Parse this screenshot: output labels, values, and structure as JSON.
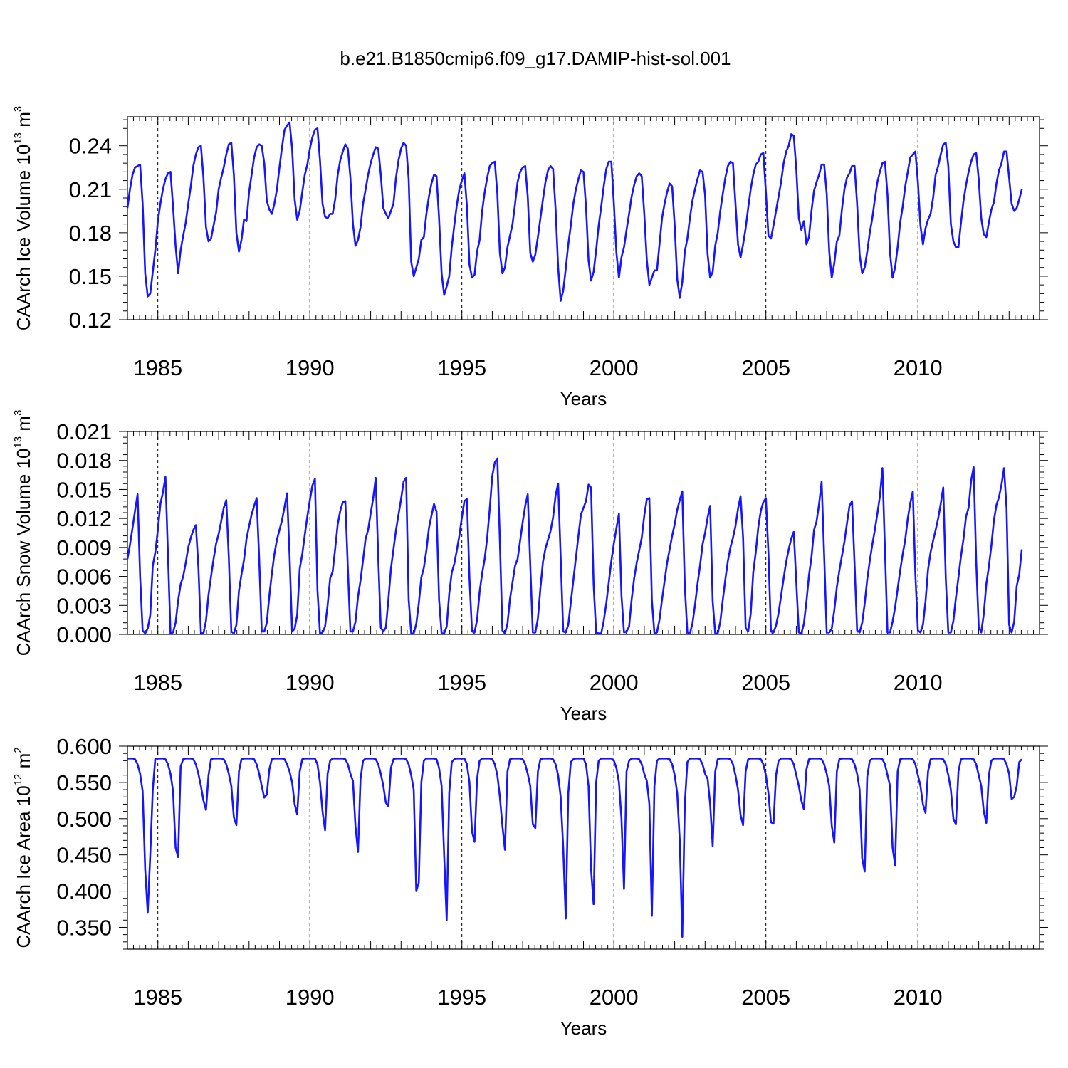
{
  "title": "b.e21.B1850cmip6.f09_g17.DAMIP-hist-sol.001",
  "line_color": "#1515ff",
  "chart_data": [
    {
      "type": "line",
      "id": "ice-volume",
      "ylabel": "CAArch Ice Volume 10",
      "ylabel_exp": "13",
      "ylabel_unit": " m",
      "ylabel_unit_exp": "3",
      "xlabel": "Years",
      "xlim": [
        1984.0,
        2014.0
      ],
      "ylim": [
        0.12,
        0.26
      ],
      "xticks": [
        1985,
        1990,
        1995,
        2000,
        2005,
        2010
      ],
      "xtick_labels": [
        "1985",
        "1990",
        "1995",
        "2000",
        "2005",
        "2010"
      ],
      "yticks": [
        0.12,
        0.15,
        0.18,
        0.21,
        0.24
      ],
      "ytick_labels": [
        "0.12",
        "0.15",
        "0.18",
        "0.21",
        "0.24"
      ],
      "x_start": 1984.0,
      "x_step": 0.0833333,
      "values": [
        0.197,
        0.21,
        0.22,
        0.225,
        0.226,
        0.227,
        0.2,
        0.152,
        0.136,
        0.138,
        0.153,
        0.168,
        0.188,
        0.2,
        0.21,
        0.217,
        0.221,
        0.222,
        0.198,
        0.171,
        0.152,
        0.168,
        0.178,
        0.187,
        0.2,
        0.212,
        0.226,
        0.234,
        0.239,
        0.24,
        0.218,
        0.184,
        0.174,
        0.176,
        0.185,
        0.194,
        0.21,
        0.218,
        0.225,
        0.234,
        0.241,
        0.242,
        0.22,
        0.18,
        0.167,
        0.175,
        0.189,
        0.188,
        0.208,
        0.22,
        0.232,
        0.239,
        0.241,
        0.24,
        0.228,
        0.202,
        0.196,
        0.193,
        0.2,
        0.21,
        0.225,
        0.239,
        0.251,
        0.254,
        0.256,
        0.238,
        0.203,
        0.189,
        0.195,
        0.208,
        0.22,
        0.227,
        0.238,
        0.246,
        0.251,
        0.252,
        0.23,
        0.2,
        0.191,
        0.19,
        0.193,
        0.193,
        0.203,
        0.22,
        0.23,
        0.236,
        0.241,
        0.238,
        0.218,
        0.186,
        0.171,
        0.175,
        0.184,
        0.2,
        0.21,
        0.22,
        0.228,
        0.234,
        0.239,
        0.238,
        0.22,
        0.197,
        0.193,
        0.19,
        0.195,
        0.2,
        0.218,
        0.23,
        0.238,
        0.242,
        0.24,
        0.217,
        0.16,
        0.15,
        0.156,
        0.162,
        0.175,
        0.177,
        0.193,
        0.205,
        0.214,
        0.22,
        0.219,
        0.19,
        0.152,
        0.137,
        0.143,
        0.15,
        0.17,
        0.185,
        0.199,
        0.21,
        0.216,
        0.221,
        0.198,
        0.158,
        0.149,
        0.151,
        0.167,
        0.175,
        0.195,
        0.208,
        0.218,
        0.226,
        0.228,
        0.229,
        0.207,
        0.166,
        0.152,
        0.156,
        0.17,
        0.178,
        0.186,
        0.2,
        0.215,
        0.222,
        0.225,
        0.226,
        0.205,
        0.166,
        0.16,
        0.165,
        0.177,
        0.19,
        0.203,
        0.215,
        0.223,
        0.226,
        0.224,
        0.196,
        0.156,
        0.133,
        0.14,
        0.155,
        0.172,
        0.185,
        0.2,
        0.21,
        0.217,
        0.223,
        0.222,
        0.198,
        0.161,
        0.147,
        0.153,
        0.168,
        0.185,
        0.198,
        0.212,
        0.224,
        0.229,
        0.229,
        0.2,
        0.166,
        0.149,
        0.163,
        0.17,
        0.182,
        0.193,
        0.205,
        0.213,
        0.219,
        0.221,
        0.219,
        0.193,
        0.161,
        0.144,
        0.149,
        0.154,
        0.154,
        0.172,
        0.19,
        0.2,
        0.208,
        0.214,
        0.212,
        0.185,
        0.148,
        0.135,
        0.146,
        0.167,
        0.176,
        0.19,
        0.202,
        0.21,
        0.217,
        0.223,
        0.222,
        0.206,
        0.165,
        0.149,
        0.153,
        0.171,
        0.18,
        0.195,
        0.207,
        0.218,
        0.226,
        0.229,
        0.228,
        0.2,
        0.172,
        0.163,
        0.172,
        0.183,
        0.197,
        0.21,
        0.22,
        0.227,
        0.229,
        0.234,
        0.235,
        0.208,
        0.178,
        0.176,
        0.185,
        0.195,
        0.205,
        0.215,
        0.228,
        0.236,
        0.24,
        0.248,
        0.247,
        0.224,
        0.19,
        0.182,
        0.188,
        0.172,
        0.177,
        0.195,
        0.209,
        0.215,
        0.22,
        0.227,
        0.227,
        0.207,
        0.167,
        0.149,
        0.159,
        0.174,
        0.178,
        0.196,
        0.21,
        0.218,
        0.221,
        0.226,
        0.226,
        0.2,
        0.165,
        0.152,
        0.156,
        0.167,
        0.18,
        0.19,
        0.203,
        0.215,
        0.222,
        0.228,
        0.229,
        0.206,
        0.166,
        0.149,
        0.156,
        0.17,
        0.187,
        0.198,
        0.212,
        0.222,
        0.232,
        0.234,
        0.236,
        0.215,
        0.185,
        0.172,
        0.183,
        0.189,
        0.193,
        0.204,
        0.22,
        0.226,
        0.234,
        0.241,
        0.242,
        0.226,
        0.186,
        0.174,
        0.17,
        0.17,
        0.187,
        0.202,
        0.213,
        0.222,
        0.229,
        0.234,
        0.235,
        0.217,
        0.19,
        0.179,
        0.177,
        0.187,
        0.196,
        0.201,
        0.214,
        0.223,
        0.228,
        0.236,
        0.236,
        0.218,
        0.2,
        0.195,
        0.197,
        0.203,
        0.21
      ]
    },
    {
      "type": "line",
      "id": "snow-volume",
      "ylabel": "CAArch Snow Volume 10",
      "ylabel_exp": "13",
      "ylabel_unit": " m",
      "ylabel_unit_exp": "3",
      "xlabel": "Years",
      "xlim": [
        1984.0,
        2014.0
      ],
      "ylim": [
        0.0,
        0.021
      ],
      "xticks": [
        1985,
        1990,
        1995,
        2000,
        2005,
        2010
      ],
      "xtick_labels": [
        "1985",
        "1990",
        "1995",
        "2000",
        "2005",
        "2010"
      ],
      "yticks": [
        0.0,
        0.003,
        0.006,
        0.009,
        0.012,
        0.015,
        0.018,
        0.021
      ],
      "ytick_labels": [
        "0.000",
        "0.003",
        "0.006",
        "0.009",
        "0.012",
        "0.015",
        "0.018",
        "0.021"
      ],
      "x_start": 1984.0,
      "x_step": 0.0833333,
      "values": [
        0.0078,
        0.0093,
        0.011,
        0.0128,
        0.0145,
        0.006,
        0.0004,
        0.0001,
        0.0006,
        0.002,
        0.0071,
        0.0085,
        0.0108,
        0.0135,
        0.0147,
        0.0163,
        0.0082,
        0.0001,
        0.0002,
        0.0012,
        0.0035,
        0.0052,
        0.006,
        0.0074,
        0.009,
        0.01,
        0.0108,
        0.0113,
        0.007,
        0.0002,
        0.0001,
        0.0014,
        0.0041,
        0.006,
        0.0078,
        0.0094,
        0.0104,
        0.0117,
        0.0131,
        0.0139,
        0.008,
        0.0003,
        0.0001,
        0.001,
        0.0045,
        0.0062,
        0.0077,
        0.0099,
        0.0112,
        0.0124,
        0.0133,
        0.0141,
        0.0078,
        0.0003,
        0.0003,
        0.0012,
        0.004,
        0.0063,
        0.0083,
        0.0098,
        0.0108,
        0.0118,
        0.0132,
        0.0146,
        0.0081,
        0.0003,
        0.0006,
        0.002,
        0.0068,
        0.0083,
        0.0103,
        0.0122,
        0.0139,
        0.0154,
        0.0161,
        0.0046,
        0.0001,
        0.0002,
        0.0008,
        0.003,
        0.0058,
        0.0065,
        0.0089,
        0.0114,
        0.0128,
        0.0137,
        0.0138,
        0.0068,
        0.0003,
        0.0003,
        0.0013,
        0.0039,
        0.0056,
        0.0077,
        0.0099,
        0.0108,
        0.0125,
        0.0141,
        0.0162,
        0.0079,
        0.0007,
        0.0003,
        0.0007,
        0.0036,
        0.0068,
        0.0088,
        0.0108,
        0.0124,
        0.014,
        0.0158,
        0.0162,
        0.0036,
        0.0001,
        0.0001,
        0.0011,
        0.0032,
        0.0059,
        0.0069,
        0.0087,
        0.011,
        0.0123,
        0.0135,
        0.0127,
        0.0036,
        0.0001,
        0.0001,
        0.0008,
        0.0042,
        0.0064,
        0.0073,
        0.0087,
        0.0102,
        0.0121,
        0.0138,
        0.014,
        0.0058,
        0.0003,
        0.0002,
        0.0015,
        0.0044,
        0.0063,
        0.0078,
        0.01,
        0.013,
        0.0164,
        0.0178,
        0.0182,
        0.0097,
        0.0004,
        0.0001,
        0.0011,
        0.0037,
        0.0054,
        0.0071,
        0.0078,
        0.0097,
        0.0116,
        0.0133,
        0.0145,
        0.0072,
        0.0002,
        0.0002,
        0.0016,
        0.0048,
        0.0075,
        0.0089,
        0.0098,
        0.0107,
        0.0121,
        0.0144,
        0.0156,
        0.008,
        0.0003,
        0.0002,
        0.001,
        0.0033,
        0.0056,
        0.0079,
        0.0102,
        0.0124,
        0.0131,
        0.0138,
        0.0155,
        0.0152,
        0.0052,
        0.0002,
        0.0001,
        0.0001,
        0.0014,
        0.0032,
        0.0054,
        0.0076,
        0.0094,
        0.011,
        0.0125,
        0.004,
        0.0002,
        0.0003,
        0.0008,
        0.0036,
        0.0058,
        0.0074,
        0.0087,
        0.01,
        0.0123,
        0.014,
        0.0141,
        0.0035,
        0.0001,
        0.0002,
        0.0015,
        0.0036,
        0.0055,
        0.0074,
        0.0088,
        0.0102,
        0.0114,
        0.0129,
        0.0139,
        0.0148,
        0.005,
        0.0002,
        0.0001,
        0.0011,
        0.003,
        0.0052,
        0.0071,
        0.0093,
        0.0105,
        0.0121,
        0.0133,
        0.0034,
        0.0001,
        0.0001,
        0.0013,
        0.0036,
        0.0057,
        0.0076,
        0.009,
        0.01,
        0.0112,
        0.013,
        0.0143,
        0.01,
        0.0007,
        0.0003,
        0.0021,
        0.0064,
        0.0085,
        0.0111,
        0.0128,
        0.0137,
        0.0141,
        0.0084,
        0.0003,
        0.0002,
        0.0009,
        0.0022,
        0.004,
        0.0058,
        0.0075,
        0.0088,
        0.0099,
        0.0106,
        0.0054,
        0.0002,
        0.0001,
        0.0011,
        0.0034,
        0.0061,
        0.008,
        0.0108,
        0.0117,
        0.0135,
        0.0158,
        0.0082,
        0.0002,
        0.0002,
        0.0006,
        0.0025,
        0.0049,
        0.0066,
        0.0081,
        0.0096,
        0.0115,
        0.0133,
        0.0138,
        0.0073,
        0.0004,
        0.0002,
        0.0012,
        0.0032,
        0.0057,
        0.0076,
        0.0093,
        0.0108,
        0.0125,
        0.0143,
        0.0172,
        0.0087,
        0.0002,
        0.0002,
        0.0013,
        0.0028,
        0.0047,
        0.0066,
        0.0083,
        0.0098,
        0.012,
        0.0136,
        0.0148,
        0.0062,
        0.0004,
        0.0002,
        0.001,
        0.0034,
        0.0067,
        0.0085,
        0.0097,
        0.0108,
        0.012,
        0.0135,
        0.0152,
        0.0058,
        0.0002,
        0.0002,
        0.0014,
        0.0038,
        0.0059,
        0.0081,
        0.0099,
        0.0122,
        0.0131,
        0.0159,
        0.0173,
        0.0076,
        0.0008,
        0.0002,
        0.0021,
        0.0052,
        0.007,
        0.0092,
        0.0118,
        0.0134,
        0.0142,
        0.0155,
        0.0172,
        0.013,
        0.001,
        0.0002,
        0.0013,
        0.005,
        0.0062,
        0.0088
      ]
    },
    {
      "type": "line",
      "id": "ice-area",
      "ylabel": "CAArch Ice Area 10",
      "ylabel_exp": "12",
      "ylabel_unit": " m",
      "ylabel_unit_exp": "2",
      "xlabel": "Years",
      "xlim": [
        1984.0,
        2014.0
      ],
      "ylim": [
        0.32,
        0.6
      ],
      "xticks": [
        1985,
        1990,
        1995,
        2000,
        2005,
        2010
      ],
      "xtick_labels": [
        "1985",
        "1990",
        "1995",
        "2000",
        "2005",
        "2010"
      ],
      "yticks": [
        0.35,
        0.4,
        0.45,
        0.5,
        0.55,
        0.6
      ],
      "ytick_labels": [
        "0.350",
        "0.400",
        "0.450",
        "0.500",
        "0.550",
        "0.600"
      ],
      "x_start": 1984.0,
      "x_step": 0.0833333,
      "values": [
        0.583,
        0.583,
        0.583,
        0.582,
        0.575,
        0.562,
        0.538,
        0.43,
        0.37,
        0.45,
        0.54,
        0.583,
        0.583,
        0.583,
        0.583,
        0.582,
        0.575,
        0.562,
        0.538,
        0.46,
        0.447,
        0.572,
        0.582,
        0.583,
        0.583,
        0.583,
        0.582,
        0.575,
        0.562,
        0.545,
        0.525,
        0.512,
        0.56,
        0.582,
        0.583,
        0.583,
        0.583,
        0.583,
        0.582,
        0.575,
        0.562,
        0.545,
        0.502,
        0.491,
        0.565,
        0.582,
        0.583,
        0.583,
        0.583,
        0.583,
        0.582,
        0.575,
        0.562,
        0.545,
        0.529,
        0.533,
        0.568,
        0.582,
        0.583,
        0.583,
        0.583,
        0.583,
        0.582,
        0.575,
        0.565,
        0.55,
        0.52,
        0.506,
        0.565,
        0.582,
        0.583,
        0.583,
        0.583,
        0.583,
        0.583,
        0.575,
        0.55,
        0.51,
        0.484,
        0.562,
        0.58,
        0.583,
        0.583,
        0.583,
        0.583,
        0.583,
        0.582,
        0.575,
        0.562,
        0.552,
        0.49,
        0.454,
        0.555,
        0.58,
        0.583,
        0.583,
        0.583,
        0.583,
        0.582,
        0.575,
        0.562,
        0.545,
        0.522,
        0.517,
        0.57,
        0.582,
        0.583,
        0.583,
        0.583,
        0.583,
        0.582,
        0.575,
        0.56,
        0.54,
        0.4,
        0.412,
        0.55,
        0.58,
        0.583,
        0.583,
        0.583,
        0.583,
        0.582,
        0.57,
        0.545,
        0.45,
        0.36,
        0.535,
        0.578,
        0.582,
        0.583,
        0.583,
        0.583,
        0.583,
        0.575,
        0.55,
        0.482,
        0.468,
        0.555,
        0.58,
        0.583,
        0.583,
        0.583,
        0.583,
        0.582,
        0.575,
        0.56,
        0.53,
        0.49,
        0.457,
        0.565,
        0.582,
        0.583,
        0.583,
        0.583,
        0.583,
        0.582,
        0.575,
        0.562,
        0.545,
        0.492,
        0.487,
        0.565,
        0.582,
        0.583,
        0.583,
        0.583,
        0.583,
        0.582,
        0.575,
        0.56,
        0.53,
        0.46,
        0.362,
        0.535,
        0.578,
        0.582,
        0.583,
        0.583,
        0.583,
        0.583,
        0.575,
        0.545,
        0.43,
        0.382,
        0.55,
        0.58,
        0.583,
        0.583,
        0.583,
        0.583,
        0.583,
        0.58,
        0.57,
        0.55,
        0.5,
        0.403,
        0.565,
        0.58,
        0.583,
        0.583,
        0.583,
        0.582,
        0.575,
        0.562,
        0.552,
        0.52,
        0.366,
        0.545,
        0.58,
        0.583,
        0.583,
        0.583,
        0.583,
        0.582,
        0.575,
        0.56,
        0.535,
        0.47,
        0.337,
        0.52,
        0.578,
        0.583,
        0.583,
        0.583,
        0.583,
        0.582,
        0.575,
        0.562,
        0.555,
        0.52,
        0.462,
        0.565,
        0.582,
        0.583,
        0.583,
        0.583,
        0.583,
        0.582,
        0.575,
        0.56,
        0.54,
        0.505,
        0.491,
        0.565,
        0.582,
        0.583,
        0.583,
        0.583,
        0.583,
        0.582,
        0.575,
        0.56,
        0.535,
        0.495,
        0.493,
        0.56,
        0.58,
        0.583,
        0.583,
        0.583,
        0.583,
        0.582,
        0.575,
        0.56,
        0.545,
        0.525,
        0.513,
        0.568,
        0.582,
        0.583,
        0.583,
        0.583,
        0.583,
        0.582,
        0.575,
        0.562,
        0.545,
        0.49,
        0.467,
        0.565,
        0.582,
        0.583,
        0.583,
        0.583,
        0.583,
        0.582,
        0.575,
        0.562,
        0.54,
        0.445,
        0.427,
        0.558,
        0.58,
        0.583,
        0.583,
        0.583,
        0.583,
        0.582,
        0.575,
        0.56,
        0.545,
        0.46,
        0.436,
        0.565,
        0.582,
        0.583,
        0.583,
        0.583,
        0.583,
        0.582,
        0.575,
        0.56,
        0.545,
        0.52,
        0.508,
        0.565,
        0.582,
        0.583,
        0.583,
        0.583,
        0.583,
        0.582,
        0.575,
        0.56,
        0.54,
        0.5,
        0.492,
        0.565,
        0.582,
        0.583,
        0.583,
        0.583,
        0.583,
        0.582,
        0.575,
        0.56,
        0.545,
        0.51,
        0.494,
        0.56,
        0.58,
        0.583,
        0.583,
        0.583,
        0.583,
        0.582,
        0.575,
        0.562,
        0.527,
        0.53,
        0.545,
        0.578,
        0.582
      ]
    }
  ]
}
